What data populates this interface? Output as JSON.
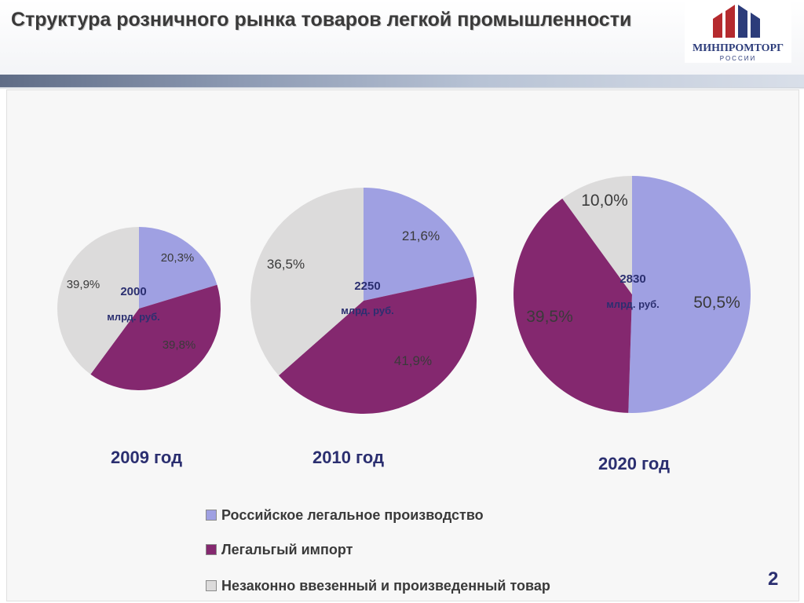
{
  "header": {
    "title": "Структура розничного рынка товаров легкой промышленности",
    "logo_text": "МИНПРОМТОРГ",
    "logo_sub": "РОССИИ"
  },
  "chart_data": [
    {
      "type": "pie",
      "label": "2009 год",
      "center_value": "2000",
      "center_unit": "млрд. руб.",
      "categories": [
        "Российское легальное производство",
        "Легальгый импорт",
        "Незаконно ввезенный и произведенный товар"
      ],
      "values": [
        20.3,
        39.8,
        39.9
      ],
      "labels": [
        "20,3%",
        "39,8%",
        "39,9%"
      ]
    },
    {
      "type": "pie",
      "label": "2010 год",
      "center_value": "2250",
      "center_unit": "млрд. руб.",
      "categories": [
        "Российское легальное производство",
        "Легальгый импорт",
        "Незаконно ввезенный и произведенный товар"
      ],
      "values": [
        21.6,
        41.9,
        36.5
      ],
      "labels": [
        "21,6%",
        "41,9%",
        "36,5%"
      ]
    },
    {
      "type": "pie",
      "label": "2020 год",
      "center_value": "2830",
      "center_unit": "млрд. руб.",
      "categories": [
        "Российское легальное производство",
        "Легальгый импорт",
        "Незаконно ввезенный и произведенный товар"
      ],
      "values": [
        50.5,
        39.5,
        10.0
      ],
      "labels": [
        "50,5%",
        "39,5%",
        "10,0%"
      ]
    }
  ],
  "colors": {
    "legal_production": "#9fa0e2",
    "legal_import": "#84286f",
    "illegal": "#dcdbdb",
    "label_blue": "#2b2f70",
    "logo_red": "#b52a2e",
    "logo_blue": "#2c3c7a"
  },
  "legend": [
    {
      "label": "Российское легальное производство",
      "color": "#9fa0e2"
    },
    {
      "label": "Легальгый импорт",
      "color": "#84286f"
    },
    {
      "label": "Незаконно ввезенный и произведенный товар",
      "color": "#dcdbdb"
    }
  ],
  "page_number": "2"
}
